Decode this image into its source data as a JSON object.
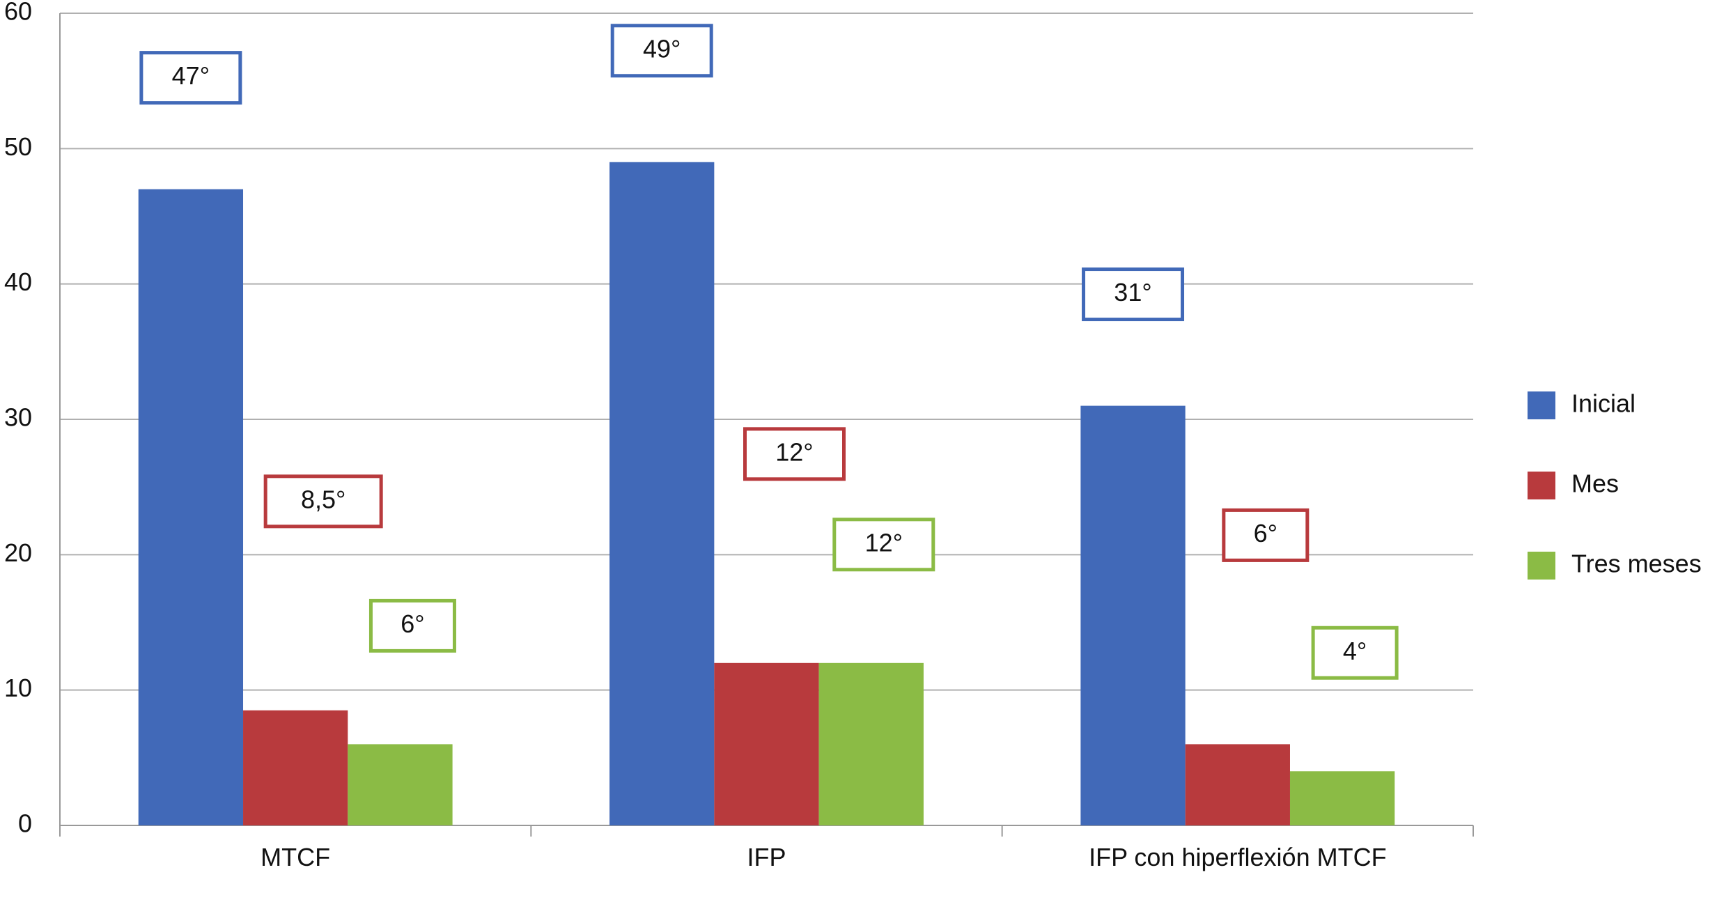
{
  "chart_data": {
    "type": "bar",
    "categories": [
      "MTCF",
      "IFP",
      "IFP con hiperflexión MTCF"
    ],
    "series": [
      {
        "name": "Inicial",
        "color": "#4169b8",
        "values": [
          47,
          49,
          31
        ],
        "value_labels": [
          "47°",
          "49°",
          "31°"
        ]
      },
      {
        "name": "Mes",
        "color": "#b83a3d",
        "values": [
          8.5,
          12,
          6
        ],
        "value_labels": [
          "8,5°",
          "12°",
          "6°"
        ]
      },
      {
        "name": "Tres meses",
        "color": "#8bbb45",
        "values": [
          6,
          12,
          4
        ],
        "value_labels": [
          "6°",
          "12°",
          "4°"
        ]
      }
    ],
    "ylim": [
      0,
      60
    ],
    "yticks": [
      0,
      10,
      20,
      30,
      40,
      50,
      60
    ],
    "grid": true,
    "legend": "right"
  }
}
